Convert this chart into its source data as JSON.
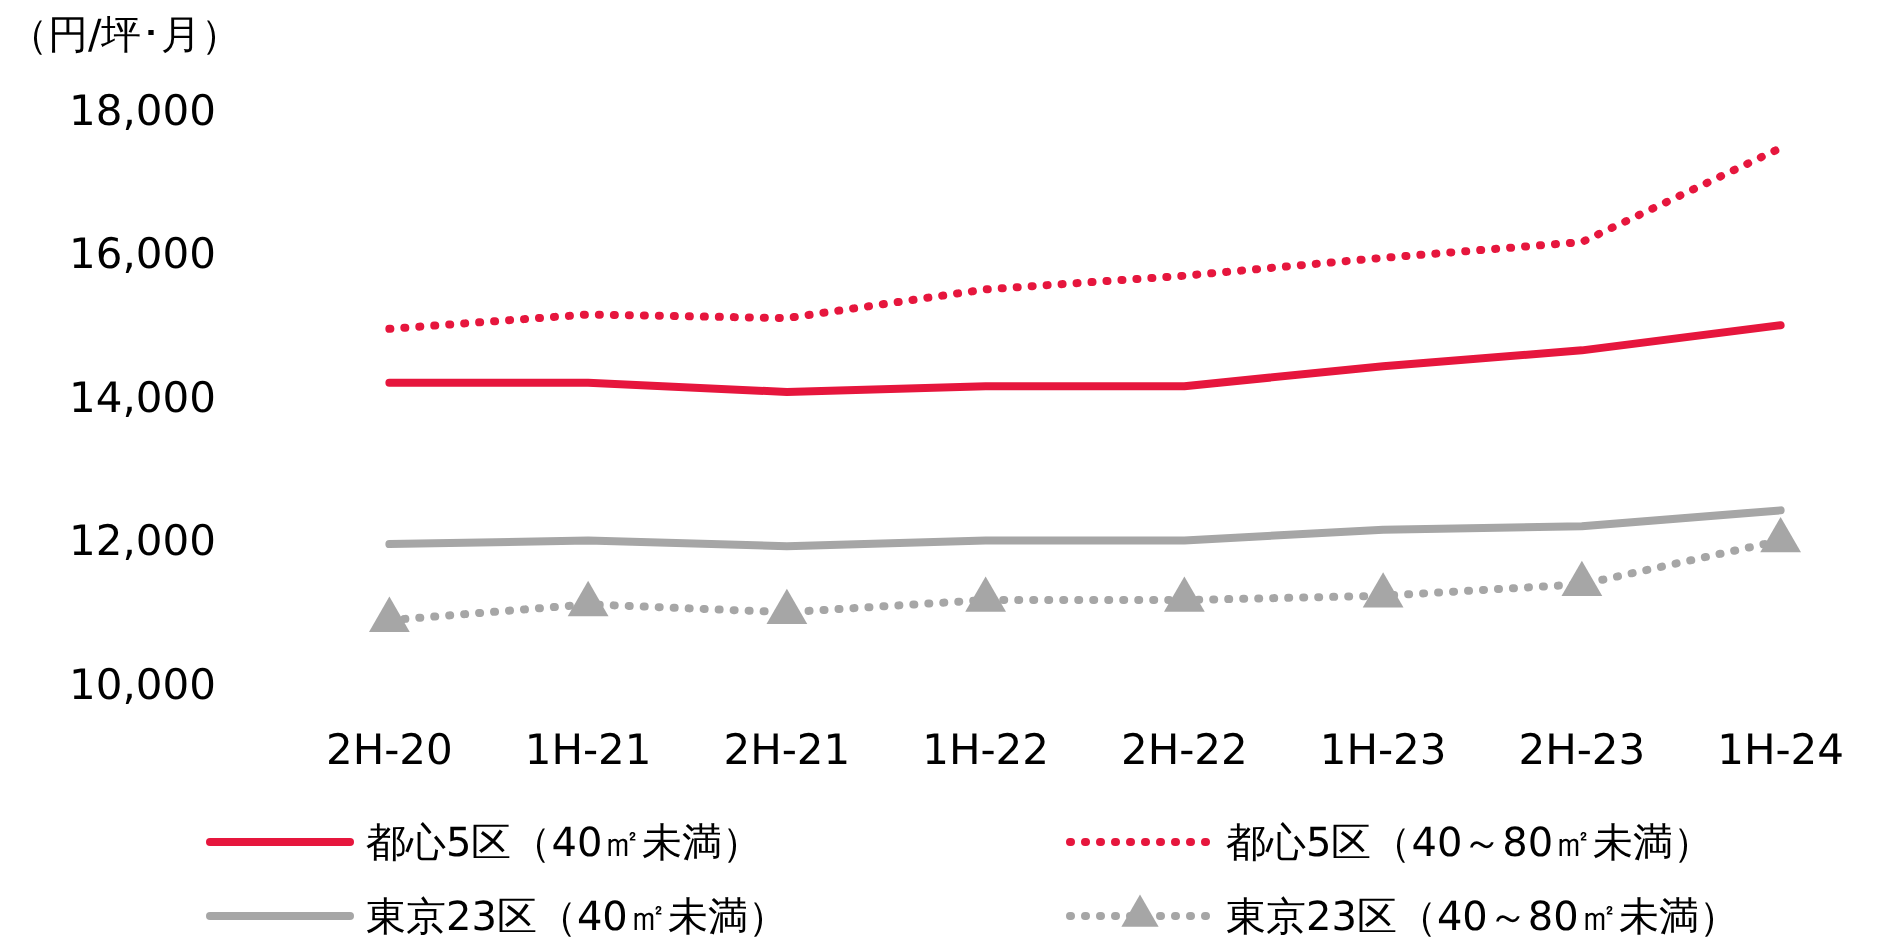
{
  "chart_data": {
    "type": "line",
    "ylabel": "（円/坪･月）",
    "categories": [
      "2H-20",
      "1H-21",
      "2H-21",
      "1H-22",
      "2H-22",
      "1H-23",
      "2H-23",
      "1H-24"
    ],
    "ylim": [
      10000,
      18000
    ],
    "yticks": [
      {
        "value": 10000,
        "label": "10,000"
      },
      {
        "value": 12000,
        "label": "12,000"
      },
      {
        "value": 14000,
        "label": "14,000"
      },
      {
        "value": 16000,
        "label": "16,000"
      },
      {
        "value": 18000,
        "label": "18,000"
      }
    ],
    "grid": false,
    "legend": "bottom",
    "series": [
      {
        "name": "都心5区（40㎡未満）",
        "color": "#e6163d",
        "line_style": "solid",
        "marker": "none",
        "values": [
          14200,
          14200,
          14070,
          14150,
          14150,
          14430,
          14650,
          15000
        ]
      },
      {
        "name": "都心5区（40～80㎡未満）",
        "color": "#e6163d",
        "line_style": "dotted",
        "marker": "none",
        "values": [
          14950,
          15150,
          15100,
          15500,
          15690,
          15940,
          16160,
          17470
        ]
      },
      {
        "name": "東京23区（40㎡未満）",
        "color": "#a6a6a6",
        "line_style": "solid",
        "marker": "none",
        "values": [
          11950,
          12000,
          11920,
          12000,
          12000,
          12150,
          12200,
          12420
        ]
      },
      {
        "name": "東京23区（40～80㎡未満）",
        "color": "#a6a6a6",
        "line_style": "dotted",
        "marker": "triangle",
        "values": [
          10890,
          11110,
          11000,
          11170,
          11170,
          11230,
          11390,
          12000
        ]
      }
    ]
  }
}
